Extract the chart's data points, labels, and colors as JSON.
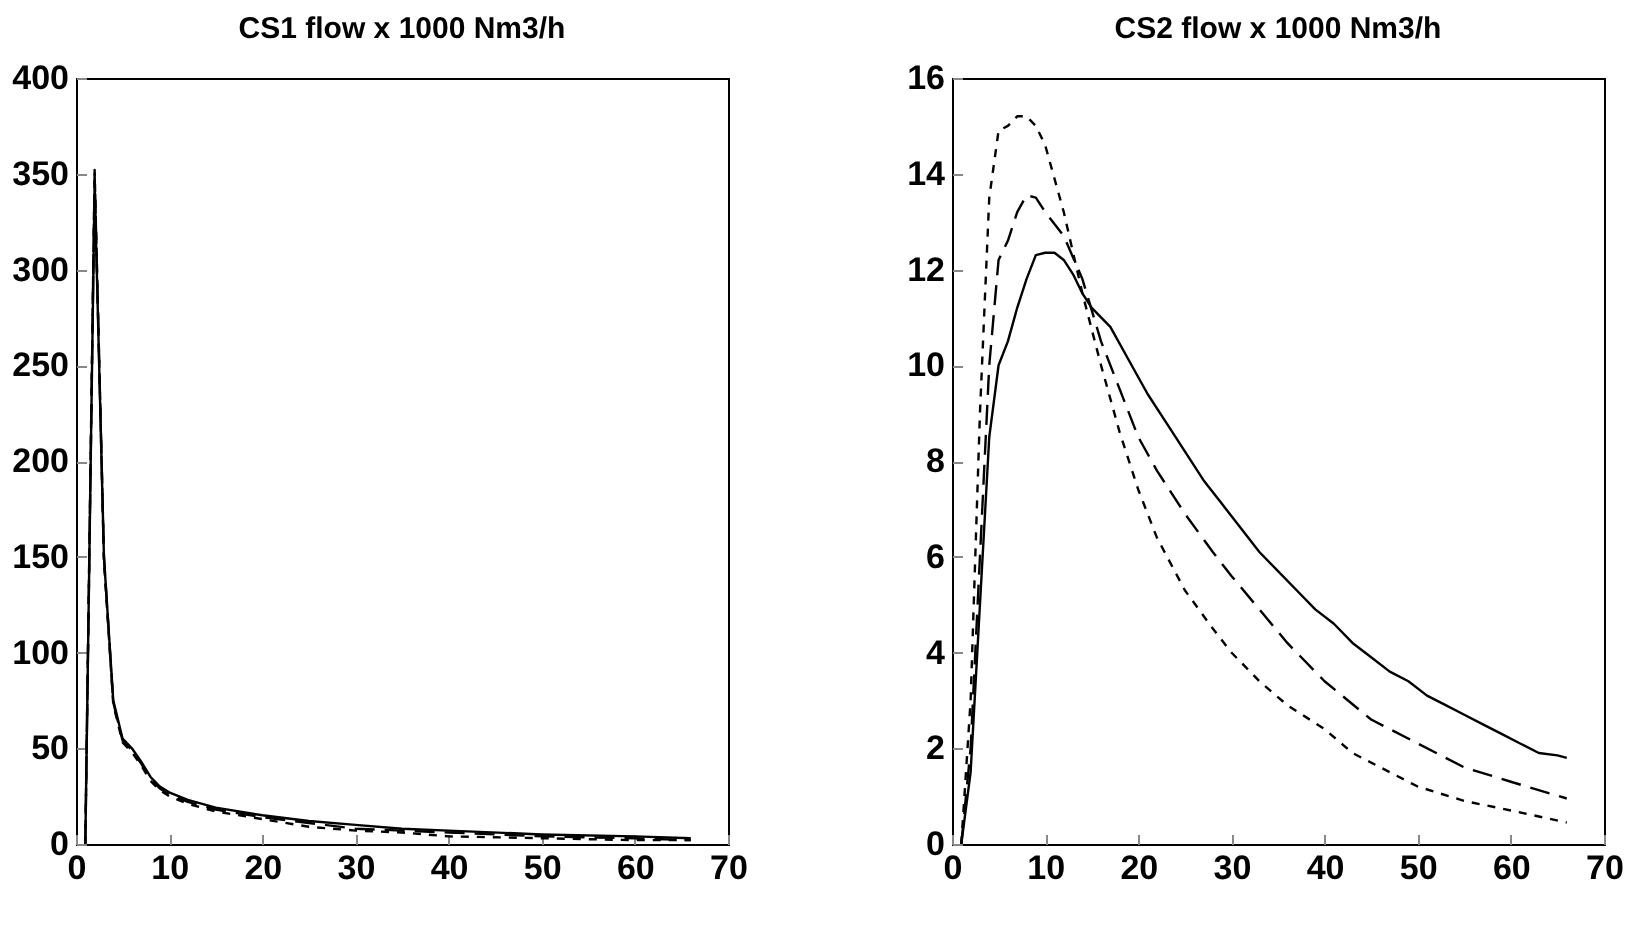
{
  "chart_data": [
    {
      "type": "line",
      "title": "CS1 flow x 1000 Nm3/h",
      "xlim": [
        0,
        70
      ],
      "xticks": [
        0,
        10,
        20,
        30,
        40,
        50,
        60,
        70
      ],
      "ylim": [
        0,
        400
      ],
      "yticks": [
        0,
        50,
        100,
        150,
        200,
        250,
        300,
        350,
        400
      ],
      "series": [
        {
          "color": "#000000",
          "line_style": "solid",
          "x": [
            1,
            2,
            3,
            4,
            5,
            6,
            7,
            8,
            9,
            10,
            12,
            15,
            20,
            25,
            30,
            35,
            40,
            50,
            60,
            66
          ],
          "values": [
            0,
            345,
            150,
            75,
            55,
            50,
            43,
            35,
            30,
            27,
            23,
            19,
            15,
            12,
            10,
            8,
            7,
            5,
            4,
            3
          ]
        },
        {
          "color": "#000000",
          "line_style": "dashed",
          "x": [
            1,
            2,
            3,
            4,
            5,
            6,
            7,
            8,
            9,
            10,
            12,
            15,
            20,
            25,
            30,
            35,
            40,
            50,
            60,
            66
          ],
          "values": [
            0,
            350,
            150,
            74,
            54,
            49,
            42,
            34,
            29,
            26,
            22,
            18,
            14,
            11,
            8,
            7,
            6,
            4,
            3,
            2
          ]
        },
        {
          "color": "#000000",
          "line_style": "dotted",
          "x": [
            1,
            2,
            3,
            4,
            5,
            6,
            7,
            8,
            9,
            10,
            12,
            15,
            20,
            25,
            30,
            35,
            40,
            50,
            60,
            66
          ],
          "values": [
            0,
            352,
            148,
            73,
            53,
            48,
            41,
            33,
            28,
            25,
            21,
            17,
            13,
            9,
            7,
            6,
            4,
            3,
            2,
            2
          ]
        }
      ]
    },
    {
      "type": "line",
      "title": "CS2 flow x 1000 Nm3/h",
      "xlim": [
        0,
        70
      ],
      "xticks": [
        0,
        10,
        20,
        30,
        40,
        50,
        60,
        70
      ],
      "ylim": [
        0,
        16
      ],
      "yticks": [
        0,
        2,
        4,
        6,
        8,
        10,
        12,
        14,
        16
      ],
      "series": [
        {
          "color": "#000000",
          "line_style": "solid",
          "x": [
            1,
            2,
            3,
            4,
            5,
            6,
            7,
            8,
            9,
            10,
            11,
            12,
            13,
            14,
            15,
            17,
            19,
            21,
            23,
            25,
            27,
            29,
            31,
            33,
            35,
            37,
            39,
            41,
            43,
            45,
            47,
            49,
            51,
            53,
            55,
            57,
            59,
            61,
            63,
            65,
            66
          ],
          "values": [
            0,
            1.5,
            5,
            8.5,
            10,
            10.5,
            11.2,
            11.8,
            12.3,
            12.35,
            12.35,
            12.2,
            11.9,
            11.5,
            11.2,
            10.8,
            10.1,
            9.4,
            8.8,
            8.2,
            7.6,
            7.1,
            6.6,
            6.1,
            5.7,
            5.3,
            4.9,
            4.6,
            4.2,
            3.9,
            3.6,
            3.4,
            3.1,
            2.9,
            2.7,
            2.5,
            2.3,
            2.1,
            1.9,
            1.85,
            1.8
          ]
        },
        {
          "color": "#000000",
          "line_style": "dashed",
          "x": [
            1,
            2,
            3,
            4,
            5,
            6,
            7,
            8,
            9,
            10,
            12,
            14,
            16,
            18,
            20,
            22,
            25,
            28,
            30,
            33,
            36,
            40,
            45,
            50,
            55,
            60,
            66
          ],
          "values": [
            0,
            2,
            6,
            10,
            12.2,
            12.6,
            13.2,
            13.55,
            13.5,
            13.2,
            12.7,
            11.8,
            10.5,
            9.5,
            8.5,
            7.8,
            6.9,
            6.1,
            5.6,
            4.9,
            4.2,
            3.4,
            2.6,
            2.1,
            1.6,
            1.3,
            0.95
          ]
        },
        {
          "color": "#000000",
          "line_style": "dotted",
          "x": [
            1,
            2,
            3,
            4,
            5,
            6,
            7,
            8,
            9,
            10,
            11,
            12,
            14,
            16,
            18,
            20,
            22,
            25,
            28,
            30,
            33,
            36,
            40,
            43,
            46,
            50,
            55,
            60,
            66
          ],
          "values": [
            0,
            3,
            9,
            13.5,
            14.9,
            15,
            15.2,
            15.2,
            15,
            14.6,
            13.9,
            13.2,
            11.5,
            10,
            8.6,
            7.4,
            6.4,
            5.3,
            4.5,
            4,
            3.4,
            2.9,
            2.4,
            1.9,
            1.6,
            1.2,
            0.9,
            0.7,
            0.45
          ]
        }
      ]
    }
  ]
}
